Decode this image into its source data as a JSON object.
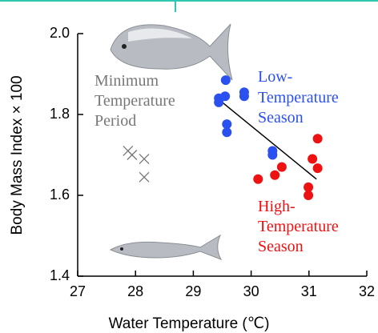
{
  "chart_data": {
    "type": "scatter",
    "x_label": "Water Temperature (℃)",
    "y_label": "Body Mass Index × 100",
    "xlim": [
      27,
      32
    ],
    "xticks": [
      27,
      28,
      29,
      30,
      31,
      32
    ],
    "ylim": [
      1.4,
      2.0
    ],
    "yticks": [
      {
        "value": 1.4,
        "label": "1.4"
      },
      1.6,
      1.8,
      {
        "value": 2.0,
        "label": "2.0"
      }
    ],
    "series": [
      {
        "label": [
          "Minimum",
          "Temperature",
          "Period"
        ],
        "color": "#777777",
        "marker": "x",
        "x": [
          27.87,
          27.94,
          28.15,
          28.15
        ],
        "values": [
          1.71,
          1.7,
          1.69,
          1.645
        ]
      },
      {
        "label": [
          "Low-",
          "Temperature",
          "Season"
        ],
        "color": "#2b50f0",
        "marker": "circle",
        "x": [
          29.56,
          29.55,
          29.44,
          29.44,
          29.88,
          29.88,
          29.58,
          29.58,
          30.37,
          30.37
        ],
        "values": [
          1.885,
          1.845,
          1.84,
          1.83,
          1.855,
          1.845,
          1.776,
          1.756,
          1.71,
          1.7
        ]
      },
      {
        "label": [
          "High-",
          "Temperature",
          "Season"
        ],
        "color": "#ee1111",
        "marker": "circle",
        "x": [
          31.15,
          31.06,
          31.15,
          30.53,
          30.41,
          30.12,
          30.99,
          30.99
        ],
        "values": [
          1.74,
          1.69,
          1.667,
          1.67,
          1.65,
          1.64,
          1.62,
          1.6
        ]
      }
    ],
    "trend": {
      "color": "#000000",
      "x": [
        29.5,
        31.13
      ],
      "values": [
        1.83,
        1.64
      ]
    }
  }
}
